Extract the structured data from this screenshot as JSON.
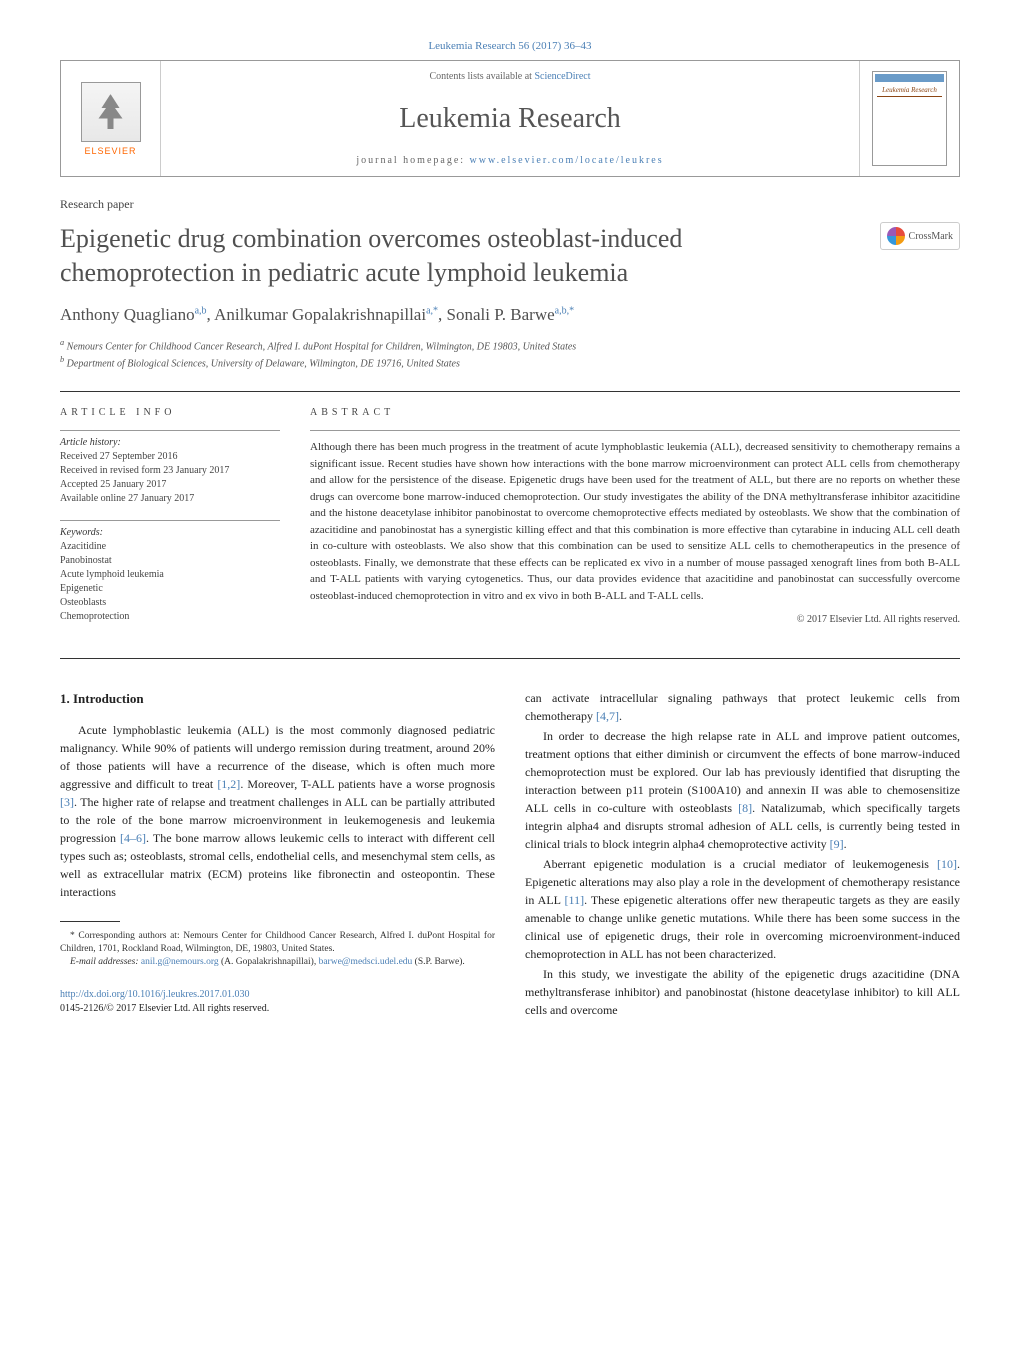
{
  "header": {
    "citation": "Leukemia Research 56 (2017) 36–43",
    "contents_prefix": "Contents lists available at ",
    "contents_link": "ScienceDirect",
    "journal_name": "Leukemia Research",
    "homepage_prefix": "journal homepage: ",
    "homepage_url": "www.elsevier.com/locate/leukres",
    "elsevier": "ELSEVIER",
    "cover_label": "Leukemia Research"
  },
  "paper": {
    "type": "Research paper",
    "title": "Epigenetic drug combination overcomes osteoblast-induced chemoprotection in pediatric acute lymphoid leukemia",
    "authors_html": "Anthony Quagliano",
    "crossmark": "CrossMark"
  },
  "authors": [
    {
      "name": "Anthony Quagliano",
      "aff": "a,b"
    },
    {
      "name": "Anilkumar Gopalakrishnapillai",
      "aff": "a,*"
    },
    {
      "name": "Sonali P. Barwe",
      "aff": "a,b,*"
    }
  ],
  "affiliations": [
    {
      "sup": "a",
      "text": "Nemours Center for Childhood Cancer Research, Alfred I. duPont Hospital for Children, Wilmington, DE 19803, United States"
    },
    {
      "sup": "b",
      "text": "Department of Biological Sciences, University of Delaware, Wilmington, DE 19716, United States"
    }
  ],
  "article_info": {
    "heading": "article info",
    "history_label": "Article history:",
    "history": [
      "Received 27 September 2016",
      "Received in revised form 23 January 2017",
      "Accepted 25 January 2017",
      "Available online 27 January 2017"
    ],
    "keywords_label": "Keywords:",
    "keywords": [
      "Azacitidine",
      "Panobinostat",
      "Acute lymphoid leukemia",
      "Epigenetic",
      "Osteoblasts",
      "Chemoprotection"
    ]
  },
  "abstract": {
    "heading": "abstract",
    "text": "Although there has been much progress in the treatment of acute lymphoblastic leukemia (ALL), decreased sensitivity to chemotherapy remains a significant issue. Recent studies have shown how interactions with the bone marrow microenvironment can protect ALL cells from chemotherapy and allow for the persistence of the disease. Epigenetic drugs have been used for the treatment of ALL, but there are no reports on whether these drugs can overcome bone marrow-induced chemoprotection. Our study investigates the ability of the DNA methyltransferase inhibitor azacitidine and the histone deacetylase inhibitor panobinostat to overcome chemoprotective effects mediated by osteoblasts. We show that the combination of azacitidine and panobinostat has a synergistic killing effect and that this combination is more effective than cytarabine in inducing ALL cell death in co-culture with osteoblasts. We also show that this combination can be used to sensitize ALL cells to chemotherapeutics in the presence of osteoblasts. Finally, we demonstrate that these effects can be replicated ex vivo in a number of mouse passaged xenograft lines from both B-ALL and T-ALL patients with varying cytogenetics. Thus, our data provides evidence that azacitidine and panobinostat can successfully overcome osteoblast-induced chemoprotection in vitro and ex vivo in both B-ALL and T-ALL cells.",
    "copyright": "© 2017 Elsevier Ltd. All rights reserved."
  },
  "body": {
    "section_heading": "1. Introduction",
    "para1": "Acute lymphoblastic leukemia (ALL) is the most commonly diagnosed pediatric malignancy. While 90% of patients will undergo remission during treatment, around 20% of those patients will have a recurrence of the disease, which is often much more aggressive and difficult to treat ",
    "cite1": "[1,2]",
    "para1b": ". Moreover, T-ALL patients have a worse prognosis ",
    "cite2": "[3]",
    "para1c": ". The higher rate of relapse and treatment challenges in ALL can be partially attributed to the role of the bone marrow microenvironment in leukemogenesis and leukemia progression ",
    "cite3": "[4–6]",
    "para1d": ". The bone marrow allows leukemic cells to interact with different cell types such as; osteoblasts, stromal cells, endothelial cells, and mesenchymal stem cells, as well as extracellular matrix (ECM) proteins like fibronectin and osteopontin. These interactions",
    "para2a": "can activate intracellular signaling pathways that protect leukemic cells from chemotherapy ",
    "cite4": "[4,7]",
    "para2b": ".",
    "para3a": "In order to decrease the high relapse rate in ALL and improve patient outcomes, treatment options that either diminish or circumvent the effects of bone marrow-induced chemoprotection must be explored. Our lab has previously identified that disrupting the interaction between p11 protein (S100A10) and annexin II was able to chemosensitize ALL cells in co-culture with osteoblasts ",
    "cite5": "[8]",
    "para3b": ". Natalizumab, which specifically targets integrin alpha4 and disrupts stromal adhesion of ALL cells, is currently being tested in clinical trials to block integrin alpha4 chemoprotective activity ",
    "cite6": "[9]",
    "para3c": ".",
    "para4a": "Aberrant epigenetic modulation is a crucial mediator of leukemogenesis ",
    "cite7": "[10]",
    "para4b": ". Epigenetic alterations may also play a role in the development of chemotherapy resistance in ALL ",
    "cite8": "[11]",
    "para4c": ". These epigenetic alterations offer new therapeutic targets as they are easily amenable to change unlike genetic mutations. While there has been some success in the clinical use of epigenetic drugs, their role in overcoming microenvironment-induced chemoprotection in ALL has not been characterized.",
    "para5": "In this study, we investigate the ability of the epigenetic drugs azacitidine (DNA methyltransferase inhibitor) and panobinostat (histone deacetylase inhibitor) to kill ALL cells and overcome"
  },
  "footnote": {
    "corr": "* Corresponding authors at: Nemours Center for Childhood Cancer Research, Alfred I. duPont Hospital for Children, 1701, Rockland Road, Wilmington, DE, 19803, United States.",
    "email_label": "E-mail addresses: ",
    "email1": "anil.g@nemours.org",
    "email1_name": " (A. Gopalakrishnapillai), ",
    "email2": "barwe@medsci.udel.edu",
    "email2_name": " (S.P. Barwe)."
  },
  "doi": {
    "url": "http://dx.doi.org/10.1016/j.leukres.2017.01.030",
    "issn": "0145-2126/© 2017 Elsevier Ltd. All rights reserved."
  },
  "colors": {
    "link": "#4a7fb5",
    "text": "#333333",
    "heading": "#505050",
    "orange": "#ff6600"
  },
  "typography": {
    "body_fontsize": 13,
    "title_fontsize": 26,
    "journal_fontsize": 28,
    "abstract_fontsize": 11,
    "footnote_fontsize": 9.5
  }
}
